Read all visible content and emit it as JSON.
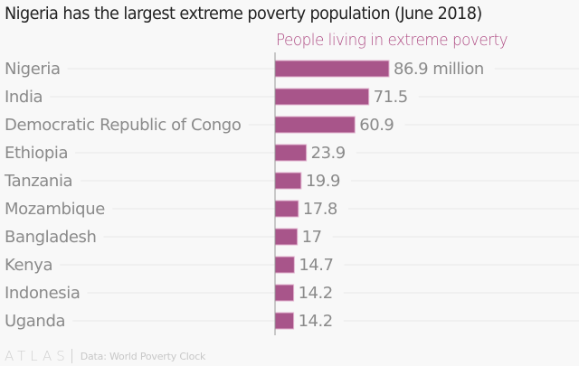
{
  "chart_data": {
    "type": "bar",
    "orientation": "horizontal",
    "title": "Nigeria has the largest extreme poverty population (June 2018)",
    "series_header": "People living in extreme poverty",
    "xlabel": "",
    "ylabel": "",
    "unit_suffix_first": " million",
    "categories": [
      "Nigeria",
      "India",
      "Democratic Republic of Congo",
      "Ethiopia",
      "Tanzania",
      "Mozambique",
      "Bangladesh",
      "Kenya",
      "Indonesia",
      "Uganda"
    ],
    "series": [
      {
        "name": "People living in extreme poverty",
        "values": [
          86.9,
          71.5,
          60.9,
          23.9,
          19.9,
          17.8,
          17,
          14.7,
          14.2,
          14.2
        ]
      }
    ],
    "value_labels": [
      "86.9 million",
      "71.5",
      "60.9",
      "23.9",
      "19.9",
      "17.8",
      "17",
      "14.7",
      "14.2",
      "14.2"
    ],
    "xlim": [
      0,
      100
    ],
    "grid": false,
    "legend": "none"
  },
  "colors": {
    "bar": "#a8558a",
    "bar_edge": "#e2b3cf",
    "label": "#8a8a8a",
    "title": "#222222",
    "accent": "#b04f86",
    "leader": "#e9e9e9",
    "axis": "#999999"
  },
  "footer": {
    "logo": "ATLAS",
    "source": "Data: World Poverty Clock"
  }
}
